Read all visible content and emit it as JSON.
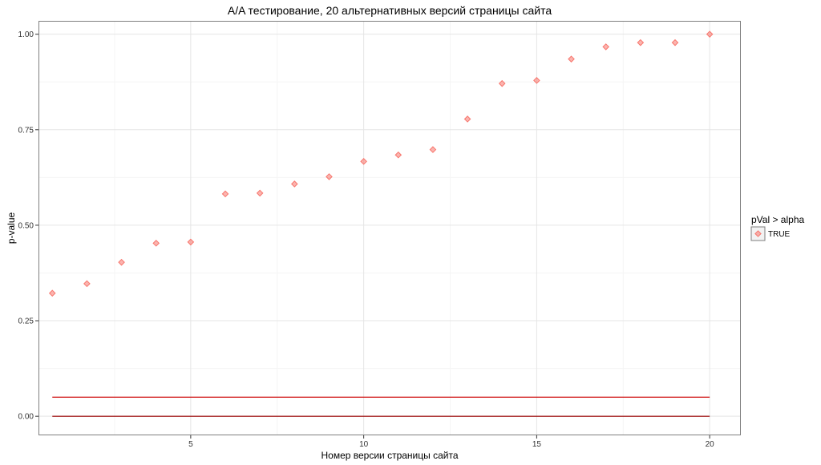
{
  "chart_data": {
    "type": "scatter",
    "title": "A/A тестирование, 20 альтернативных версий страницы сайта",
    "xlabel": "Номер версии страницы сайта",
    "ylabel": "p-value",
    "xlim": [
      0.6,
      20.9
    ],
    "ylim": [
      -0.05,
      1.035
    ],
    "x_ticks": [
      5,
      10,
      15,
      20
    ],
    "x_tick_labels": [
      "5",
      "10",
      "15",
      "20"
    ],
    "y_ticks": [
      0,
      0.25,
      0.5,
      0.75,
      1.0
    ],
    "y_tick_labels": [
      "0.00",
      "0.25",
      "0.50",
      "0.75",
      "1.00"
    ],
    "grid": true,
    "legend": {
      "title": "pVal > alpha",
      "position": "right",
      "entries": [
        "TRUE"
      ]
    },
    "series": [
      {
        "name": "TRUE",
        "color": "#F8766D",
        "marker": "diamond",
        "x": [
          1,
          2,
          3,
          4,
          5,
          6,
          7,
          8,
          9,
          10,
          11,
          12,
          13,
          14,
          15,
          16,
          17,
          18,
          19,
          20
        ],
        "y": [
          0.322,
          0.347,
          0.403,
          0.453,
          0.456,
          0.582,
          0.584,
          0.608,
          0.627,
          0.667,
          0.684,
          0.698,
          0.778,
          0.871,
          0.879,
          0.935,
          0.967,
          0.978,
          0.978,
          1.0
        ]
      }
    ],
    "reference_lines": [
      {
        "y": 0.05,
        "x_from": 1,
        "x_to": 20,
        "color": "#CC0000"
      },
      {
        "y": 0.0,
        "x_from": 1,
        "x_to": 20,
        "color": "#990000"
      }
    ],
    "colors": {
      "panel_background": "#FFFFFF",
      "panel_border": "#7F7F7F",
      "grid_major": "#E5E5E5",
      "grid_minor": "#F5F5F5",
      "point_fill": "#F8766D",
      "point_stroke": "#F8766D"
    }
  }
}
